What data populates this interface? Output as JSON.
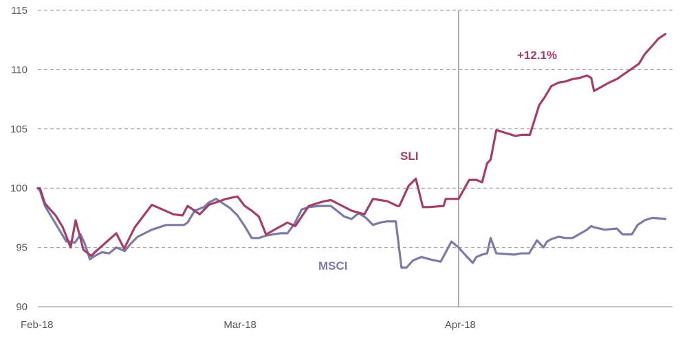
{
  "chart_data": {
    "type": "line",
    "title": "",
    "xlabel": "",
    "ylabel": "",
    "ylim": [
      90,
      115
    ],
    "y_ticks": [
      "115",
      "110",
      "105",
      "100",
      "95",
      "90"
    ],
    "x_ticks": [
      {
        "label": "Feb-18",
        "x": 0
      },
      {
        "label": "Mar-18",
        "x": 28
      },
      {
        "label": "Apr-18",
        "x": 59
      }
    ],
    "x_range": [
      0,
      89
    ],
    "grid": "horizontal dashed",
    "marker_line": {
      "x": 59
    },
    "annotation": {
      "text": "+12.1%",
      "color": "#a33e6a"
    },
    "series": [
      {
        "name": "SLI",
        "color": "#a33e6a",
        "x": [
          0,
          0.3,
          1,
          1.6,
          2.5,
          3.5,
          4.6,
          5.3,
          6.4,
          7.5,
          8,
          11,
          12.1,
          13.6,
          16,
          19,
          20.3,
          21,
          22.7,
          24,
          25,
          26.4,
          28,
          29,
          30,
          31,
          32,
          33.5,
          35,
          36.1,
          38,
          39.6,
          40.2,
          41.1,
          44,
          45.8,
          47,
          48,
          49,
          50.4,
          50.7,
          52,
          53,
          54,
          54.8,
          56.9,
          57.2,
          59,
          60.5,
          61,
          61.5,
          62.3,
          63,
          63.5,
          64.3,
          67,
          67.8,
          69,
          70.3,
          71,
          72,
          73,
          74,
          75,
          76,
          77,
          77.6,
          78,
          80.1,
          81.2,
          84.3,
          85.1,
          86.3,
          87,
          88
        ],
        "y": [
          100,
          100,
          98.7,
          98.3,
          97.7,
          96.7,
          95,
          97.3,
          94.8,
          94.3,
          94.6,
          96.2,
          94.9,
          96.7,
          98.6,
          97.8,
          97.7,
          98.5,
          97.8,
          98.6,
          98.8,
          99.1,
          99.3,
          98.5,
          98.1,
          97.6,
          96.1,
          96.6,
          97.1,
          96.8,
          98.5,
          98.8,
          98.9,
          99,
          98.1,
          97.8,
          99.1,
          99,
          98.9,
          98.5,
          98.5,
          100.2,
          100.8,
          98.4,
          98.4,
          98.5,
          99.1,
          99.1,
          100.7,
          100.7,
          100.7,
          100.5,
          102.1,
          102.4,
          104.9,
          104.4,
          104.5,
          104.5,
          107,
          107.6,
          108.6,
          108.9,
          109,
          109.2,
          109.3,
          109.5,
          109.3,
          108.2,
          108.9,
          109.2,
          110.5,
          111.3,
          112.1,
          112.6,
          113
        ]
      },
      {
        "name": "MSCI",
        "color": "#7b7ba6",
        "x": [
          0,
          0.3,
          1,
          2,
          3,
          4,
          4.6,
          5.2,
          6,
          6.6,
          7.3,
          8,
          9,
          10,
          11,
          12.2,
          13,
          14,
          16,
          18,
          19,
          20.5,
          21,
          22,
          23.3,
          24,
          25,
          27,
          28,
          29,
          30,
          31,
          32,
          33,
          34,
          35,
          36,
          37,
          38,
          39.5,
          41.1,
          43,
          44,
          45,
          46,
          47,
          48,
          49,
          50.2,
          51,
          51.7,
          52,
          52.6,
          53.8,
          55,
          56.5,
          58,
          59,
          60.2,
          61,
          61.5,
          62.3,
          63,
          63.5,
          64.3,
          66.8,
          67.8,
          68.9,
          70,
          70.9,
          71.4,
          72,
          73,
          74,
          75,
          77,
          77.6,
          78,
          79.5,
          81.2,
          82,
          83.3,
          84.1,
          85.1,
          86.2,
          88
        ],
        "y": [
          100,
          99.8,
          98.5,
          97.5,
          96.5,
          95.5,
          95.5,
          95.4,
          96.1,
          95.3,
          94,
          94.3,
          94.6,
          94.5,
          95,
          94.7,
          95.3,
          95.9,
          96.5,
          96.9,
          96.9,
          96.9,
          97.1,
          98.1,
          98.4,
          98.8,
          99.1,
          98.3,
          97.7,
          96.8,
          95.8,
          95.8,
          96,
          96.1,
          96.2,
          96.2,
          97,
          98.2,
          98.4,
          98.5,
          98.5,
          97.6,
          97.4,
          97.9,
          97.5,
          96.9,
          97.1,
          97.2,
          97.2,
          93.3,
          93.3,
          93.5,
          93.9,
          94.2,
          94,
          93.8,
          95.5,
          95,
          94.2,
          93.7,
          94.2,
          94.4,
          94.5,
          95.8,
          94.5,
          94.4,
          94.5,
          94.5,
          95.6,
          95,
          95.5,
          95.7,
          95.9,
          95.8,
          95.8,
          96.5,
          96.8,
          96.7,
          96.5,
          96.6,
          96.1,
          96.1,
          96.9,
          97.3,
          97.5,
          97.4
        ]
      }
    ]
  }
}
